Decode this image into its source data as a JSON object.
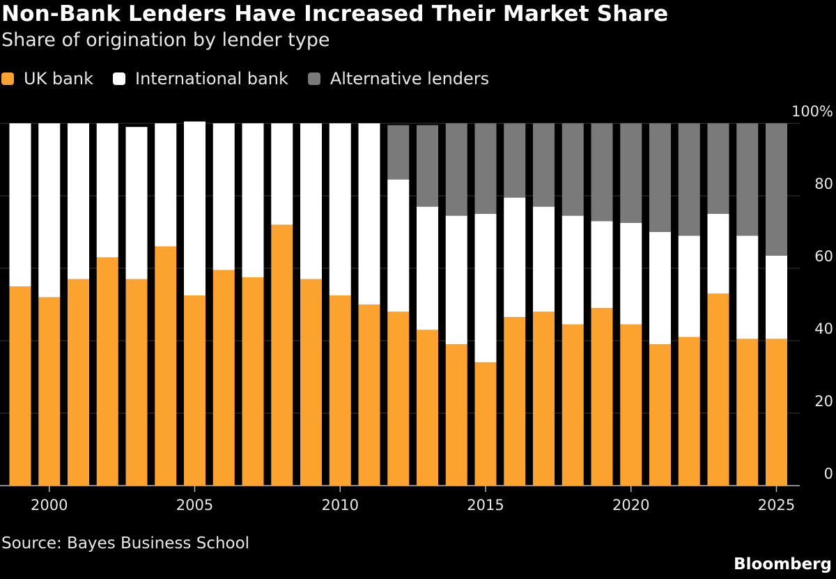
{
  "title": "Non-Bank Lenders Have Increased Their Market Share",
  "subtitle": "Share of origination by lender type",
  "source": "Source: Bayes Business School",
  "brand": "Bloomberg",
  "legend": [
    {
      "label": "UK bank",
      "color": "#fba22f"
    },
    {
      "label": "International bank",
      "color": "#ffffff"
    },
    {
      "label": "Alternative lenders",
      "color": "#7a7a7a"
    }
  ],
  "chart_data": {
    "type": "bar",
    "stacked": true,
    "x": [
      1999,
      2000,
      2001,
      2002,
      2003,
      2004,
      2005,
      2006,
      2007,
      2008,
      2009,
      2010,
      2011,
      2012,
      2013,
      2014,
      2015,
      2016,
      2017,
      2018,
      2019,
      2020,
      2021,
      2022,
      2023,
      2024,
      2025
    ],
    "series": [
      {
        "name": "UK bank",
        "color": "#fba22f",
        "values": [
          55,
          52,
          57,
          63,
          57,
          66,
          52.5,
          59.5,
          57.5,
          72,
          57,
          52.5,
          50,
          48,
          43,
          39,
          34,
          46.5,
          48,
          44.5,
          49,
          44.5,
          39,
          41,
          53,
          40.5,
          40.5
        ]
      },
      {
        "name": "International bank",
        "color": "#ffffff",
        "values": [
          45,
          48,
          43,
          37,
          42,
          34,
          48,
          40.5,
          42.5,
          28,
          43,
          47.5,
          50,
          36.5,
          34,
          35.5,
          41,
          33,
          29,
          30,
          24,
          28,
          31,
          28,
          22,
          28.5,
          23
        ]
      },
      {
        "name": "Alternative lenders",
        "color": "#7a7a7a",
        "values": [
          0,
          0,
          0,
          0,
          0,
          0,
          0,
          0,
          0,
          0,
          0,
          0,
          0,
          15,
          22.5,
          25.5,
          25,
          20.5,
          23,
          25.5,
          27,
          27.5,
          30,
          31,
          25,
          31,
          36.5
        ]
      }
    ],
    "y_ticks": [
      {
        "value": 0,
        "label": "0"
      },
      {
        "value": 20,
        "label": "20"
      },
      {
        "value": 40,
        "label": "40"
      },
      {
        "value": 60,
        "label": "60"
      },
      {
        "value": 80,
        "label": "80"
      },
      {
        "value": 100,
        "label": "100%"
      }
    ],
    "x_ticks": [
      {
        "value": 2000,
        "label": "2000"
      },
      {
        "value": 2005,
        "label": "2005"
      },
      {
        "value": 2010,
        "label": "2010"
      },
      {
        "value": 2015,
        "label": "2015"
      },
      {
        "value": 2020,
        "label": "2020"
      },
      {
        "value": 2025,
        "label": "2025"
      }
    ],
    "ylim": [
      0,
      100
    ],
    "axis_side": "right",
    "grid": true,
    "legend_position": "top-left"
  }
}
